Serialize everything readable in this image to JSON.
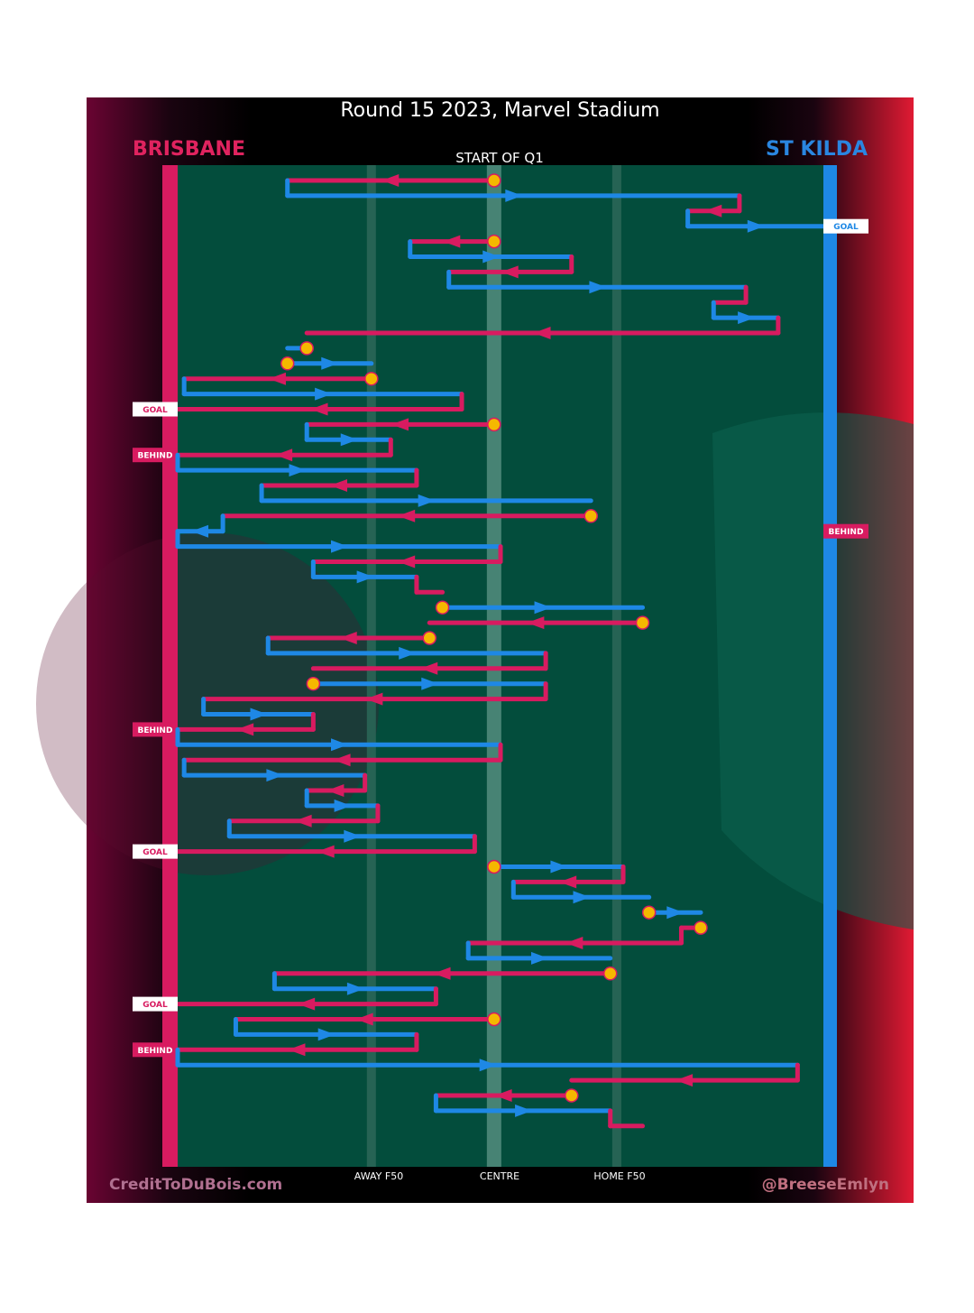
{
  "chart_data": {
    "type": "line",
    "title": "Round 15 2023, Marvel Stadium",
    "subtitle": "START OF Q1",
    "teams": {
      "left": {
        "name": "BRISBANE",
        "color": "#d81b60"
      },
      "right": {
        "name": "ST KILDA",
        "color": "#1e88e5"
      }
    },
    "x_ticks": [
      {
        "label": "AWAY F50",
        "value": 0.3
      },
      {
        "label": "CENTRE",
        "value": 0.49
      },
      {
        "label": "HOME F50",
        "value": 0.68
      }
    ],
    "credits": {
      "left": "CreditToDuBois.com",
      "right": "@BreeseEmlyn"
    },
    "x_range": [
      0,
      1
    ],
    "chains": [
      {
        "team": "B",
        "from": 0.49,
        "to": 0.17,
        "start": "centre"
      },
      {
        "team": "S",
        "from": 0.17,
        "to": 0.87
      },
      {
        "team": "B",
        "from": 0.87,
        "to": 0.79
      },
      {
        "team": "S",
        "from": 0.79,
        "to": 1.0,
        "result": "GOAL"
      },
      {
        "team": "B",
        "from": 0.49,
        "to": 0.36,
        "start": "centre"
      },
      {
        "team": "S",
        "from": 0.36,
        "to": 0.61
      },
      {
        "team": "B",
        "from": 0.61,
        "to": 0.42
      },
      {
        "team": "S",
        "from": 0.42,
        "to": 0.88
      },
      {
        "team": "B",
        "from": 0.88,
        "to": 0.83
      },
      {
        "team": "S",
        "from": 0.83,
        "to": 0.93
      },
      {
        "team": "B",
        "from": 0.93,
        "to": 0.2
      },
      {
        "team": "S",
        "from": 0.2,
        "to": 0.17,
        "start": "stoppage"
      },
      {
        "team": "S",
        "from": 0.17,
        "to": 0.3,
        "start": "stoppage"
      },
      {
        "team": "B",
        "from": 0.3,
        "to": 0.01,
        "start": "stoppage"
      },
      {
        "team": "S",
        "from": 0.01,
        "to": 0.44
      },
      {
        "team": "B",
        "from": 0.44,
        "to": 0.0,
        "result": "GOAL"
      },
      {
        "team": "B",
        "from": 0.49,
        "to": 0.2,
        "start": "centre"
      },
      {
        "team": "S",
        "from": 0.2,
        "to": 0.33
      },
      {
        "team": "B",
        "from": 0.33,
        "to": 0.0,
        "result": "BEHIND"
      },
      {
        "team": "S",
        "from": 0.0,
        "to": 0.37
      },
      {
        "team": "B",
        "from": 0.37,
        "to": 0.13
      },
      {
        "team": "S",
        "from": 0.13,
        "to": 0.64
      },
      {
        "team": "B",
        "from": 0.64,
        "to": 0.07,
        "start": "stoppage"
      },
      {
        "team": "S",
        "from": 0.07,
        "to": 0.0,
        "result": "BEHIND"
      },
      {
        "team": "S",
        "from": 0.0,
        "to": 0.5
      },
      {
        "team": "B",
        "from": 0.5,
        "to": 0.21
      },
      {
        "team": "S",
        "from": 0.21,
        "to": 0.37
      },
      {
        "team": "B",
        "from": 0.37,
        "to": 0.41
      },
      {
        "team": "S",
        "from": 0.41,
        "to": 0.72,
        "start": "stoppage"
      },
      {
        "team": "B",
        "from": 0.72,
        "to": 0.39,
        "start": "stoppage"
      },
      {
        "team": "B",
        "from": 0.39,
        "to": 0.14,
        "start": "stoppage"
      },
      {
        "team": "S",
        "from": 0.14,
        "to": 0.57
      },
      {
        "team": "B",
        "from": 0.57,
        "to": 0.21
      },
      {
        "team": "S",
        "from": 0.21,
        "to": 0.57,
        "start": "stoppage"
      },
      {
        "team": "B",
        "from": 0.57,
        "to": 0.04
      },
      {
        "team": "S",
        "from": 0.04,
        "to": 0.21
      },
      {
        "team": "B",
        "from": 0.21,
        "to": 0.0,
        "result": "BEHIND"
      },
      {
        "team": "S",
        "from": 0.0,
        "to": 0.5
      },
      {
        "team": "B",
        "from": 0.5,
        "to": 0.01
      },
      {
        "team": "S",
        "from": 0.01,
        "to": 0.29
      },
      {
        "team": "B",
        "from": 0.29,
        "to": 0.2
      },
      {
        "team": "S",
        "from": 0.2,
        "to": 0.31
      },
      {
        "team": "B",
        "from": 0.31,
        "to": 0.08
      },
      {
        "team": "S",
        "from": 0.08,
        "to": 0.46
      },
      {
        "team": "B",
        "from": 0.46,
        "to": 0.0,
        "result": "GOAL"
      },
      {
        "team": "S",
        "from": 0.49,
        "to": 0.69,
        "start": "centre"
      },
      {
        "team": "B",
        "from": 0.69,
        "to": 0.52
      },
      {
        "team": "S",
        "from": 0.52,
        "to": 0.73
      },
      {
        "team": "S",
        "from": 0.73,
        "to": 0.81,
        "start": "stoppage"
      },
      {
        "team": "B",
        "from": 0.81,
        "to": 0.78,
        "start": "stoppage"
      },
      {
        "team": "B",
        "from": 0.78,
        "to": 0.45
      },
      {
        "team": "S",
        "from": 0.45,
        "to": 0.67
      },
      {
        "team": "B",
        "from": 0.67,
        "to": 0.15,
        "start": "stoppage"
      },
      {
        "team": "S",
        "from": 0.15,
        "to": 0.4
      },
      {
        "team": "B",
        "from": 0.4,
        "to": 0.0,
        "result": "GOAL"
      },
      {
        "team": "B",
        "from": 0.49,
        "to": 0.09,
        "start": "centre"
      },
      {
        "team": "S",
        "from": 0.09,
        "to": 0.37
      },
      {
        "team": "B",
        "from": 0.37,
        "to": 0.0,
        "result": "BEHIND"
      },
      {
        "team": "S",
        "from": 0.0,
        "to": 0.96
      },
      {
        "team": "B",
        "from": 0.96,
        "to": 0.61
      },
      {
        "team": "B",
        "from": 0.61,
        "to": 0.4,
        "start": "stoppage"
      },
      {
        "team": "S",
        "from": 0.4,
        "to": 0.67
      },
      {
        "team": "B",
        "from": 0.67,
        "to": 0.72
      }
    ]
  }
}
